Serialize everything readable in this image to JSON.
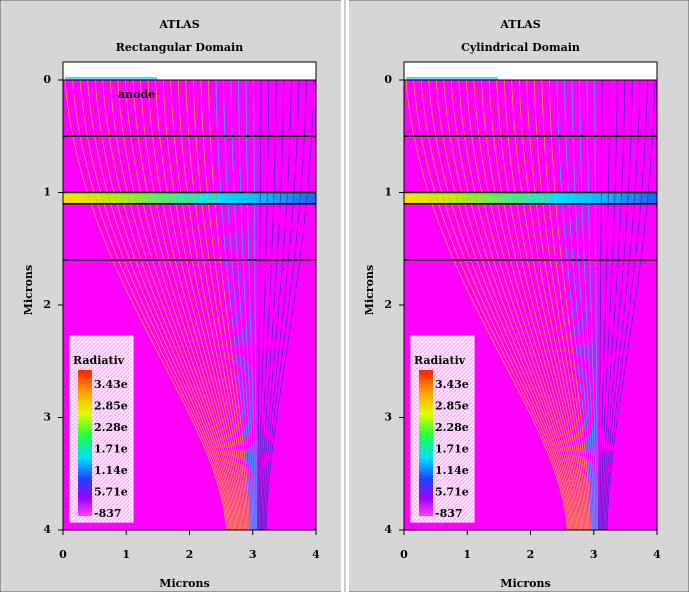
{
  "chart_data": [
    {
      "type": "contour",
      "title": "ATLAS",
      "subtitle": "Rectangular Domain",
      "xlabel": "Microns",
      "ylabel": "Microns",
      "xlim": [
        0,
        4
      ],
      "ylim": [
        4,
        0
      ],
      "xticks": [
        0,
        1,
        2,
        3,
        4
      ],
      "yticks": [
        0,
        1,
        2,
        3,
        4
      ],
      "boundaries": [
        0.5,
        1.0,
        1.1,
        1.6
      ],
      "annotation": "anode",
      "legend": {
        "title": "Radiativ",
        "labels": [
          "3.43e",
          "2.85e",
          "2.28e",
          "1.71e",
          "1.14e",
          "5.71e",
          "-837"
        ]
      }
    },
    {
      "type": "contour",
      "title": "ATLAS",
      "subtitle": "Cylindrical Domain",
      "xlabel": "Microns",
      "ylabel": "Microns",
      "xlim": [
        0,
        4
      ],
      "ylim": [
        4,
        0
      ],
      "xticks": [
        0,
        1,
        2,
        3,
        4
      ],
      "yticks": [
        0,
        1,
        2,
        3,
        4
      ],
      "boundaries": [
        0.5,
        1.0,
        1.1,
        1.6
      ],
      "legend": {
        "title": "Radiativ",
        "labels": [
          "3.43e",
          "2.85e",
          "2.28e",
          "1.71e",
          "1.14e",
          "5.71e",
          "-837"
        ]
      }
    }
  ]
}
